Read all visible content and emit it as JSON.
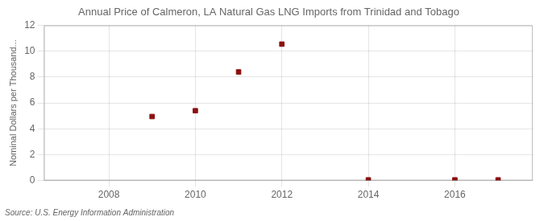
{
  "chart_data": {
    "type": "scatter",
    "title": "Annual Price of Calmeron, LA Natural Gas LNG Imports from Trinidad and Tobago",
    "y_label": "Nominal Dollars per Thousand...",
    "annotation": "Source: U.S. Energy Information Administration",
    "x": [
      2009,
      2010,
      2011,
      2012,
      2014,
      2016,
      2017
    ],
    "values": [
      4.95,
      5.4,
      8.4,
      10.55,
      0.05,
      0.05,
      0.05
    ],
    "color": "#8B1010",
    "marker": "square",
    "xlim": [
      2006.5,
      2017.8
    ],
    "ylim": [
      0,
      12
    ],
    "xticks": [
      2008,
      2010,
      2012,
      2014,
      2016
    ],
    "yticks": [
      0,
      2,
      4,
      6,
      8,
      10,
      12
    ],
    "grid": true
  }
}
